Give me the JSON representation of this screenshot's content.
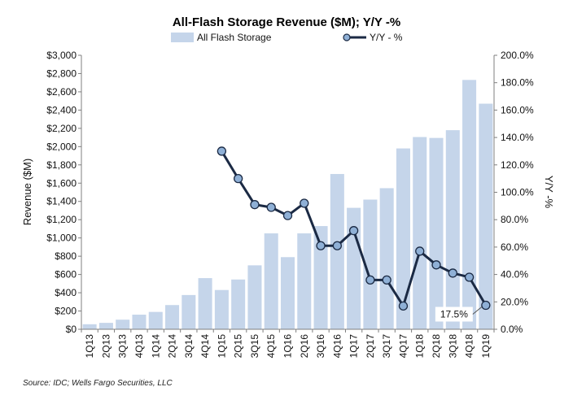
{
  "chart_data": {
    "type": "bar",
    "title": "All-Flash Storage Revenue ($M); Y/Y -%",
    "ylabel": "Revenue ($M)",
    "y2label": "Y/Y -%",
    "ylim": [
      0,
      3000
    ],
    "y2lim": [
      0,
      200
    ],
    "yticks": [
      "$0",
      "$200",
      "$400",
      "$600",
      "$800",
      "$1,000",
      "$1,200",
      "$1,400",
      "$1,600",
      "$1,800",
      "$2,000",
      "$2,200",
      "$2,400",
      "$2,600",
      "$2,800",
      "$3,000"
    ],
    "y2ticks": [
      "0.0%",
      "20.0%",
      "40.0%",
      "60.0%",
      "80.0%",
      "100.0%",
      "120.0%",
      "140.0%",
      "160.0%",
      "180.0%",
      "200.0%"
    ],
    "categories": [
      "1Q13",
      "2Q13",
      "3Q13",
      "4Q13",
      "1Q14",
      "2Q14",
      "3Q14",
      "4Q14",
      "1Q15",
      "2Q15",
      "3Q15",
      "4Q15",
      "1Q16",
      "2Q16",
      "3Q16",
      "4Q16",
      "1Q17",
      "2Q17",
      "3Q17",
      "4Q17",
      "1Q18",
      "2Q18",
      "3Q18",
      "4Q18",
      "1Q19"
    ],
    "series": [
      {
        "name": "All Flash Storage",
        "type": "bar",
        "axis": "left",
        "color": "#c5d5ea",
        "values": [
          55,
          70,
          105,
          160,
          190,
          265,
          375,
          560,
          430,
          545,
          700,
          1050,
          790,
          1050,
          1130,
          1700,
          1330,
          1420,
          1545,
          1980,
          2105,
          2095,
          2180,
          2730,
          2470
        ]
      },
      {
        "name": "Y/Y - %",
        "type": "line",
        "axis": "right",
        "color": "#1b2a44",
        "marker_fill": "#8fb0d6",
        "values": [
          null,
          null,
          null,
          null,
          null,
          null,
          null,
          null,
          130,
          110,
          91,
          89,
          83,
          92,
          61,
          61,
          72,
          36,
          36,
          17,
          57,
          47,
          41,
          38,
          17.5
        ]
      }
    ],
    "legend_position": "top-center",
    "grid": false,
    "annotation": {
      "text": "17.5%",
      "category": "1Q19"
    },
    "source": "Source: IDC; Wells Fargo Securities, LLC"
  }
}
